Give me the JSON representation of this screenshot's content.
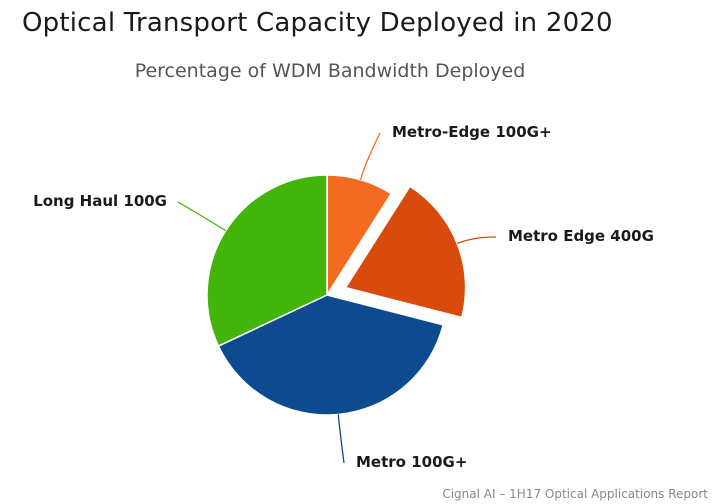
{
  "title": "Optical Transport Capacity Deployed in 2020",
  "subtitle": "Percentage of WDM Bandwidth Deployed",
  "source": "Cignal AI – 1H17 Optical Applications Report",
  "chart_data": {
    "type": "pie",
    "slices": [
      {
        "label": "Metro-Edge 100G+",
        "value": 9,
        "color": "#f26b21",
        "exploded": false
      },
      {
        "label": "Metro Edge 400G",
        "value": 20,
        "color": "#d94b0c",
        "exploded": true
      },
      {
        "label": "Metro 100G+",
        "value": 39,
        "color": "#0d4a8f",
        "exploded": false
      },
      {
        "label": "Long Haul 100G",
        "value": 32,
        "color": "#42b40a",
        "exploded": false
      }
    ]
  }
}
